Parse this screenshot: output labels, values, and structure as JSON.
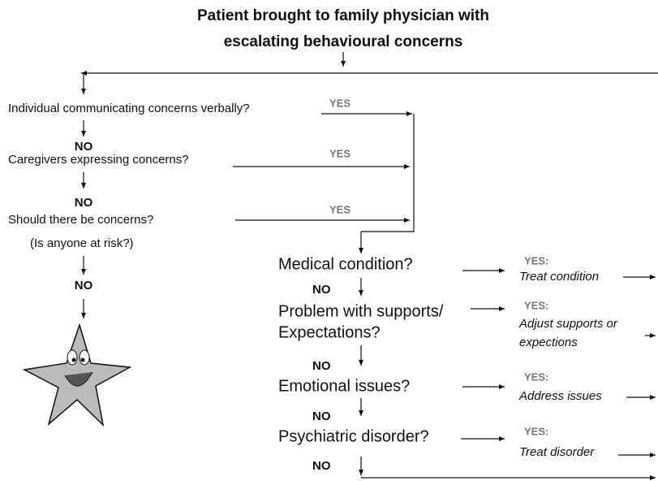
{
  "title": [
    "Patient brought to family physician with",
    "escalating behavioural concerns"
  ],
  "screening": {
    "questions": [
      "Individual communicating concerns verbally?",
      "Caregivers expressing concerns?",
      "Should there be concerns?"
    ],
    "risk_note": "(Is anyone at risk?)",
    "yes_labels": [
      "YES",
      "YES",
      "YES"
    ],
    "no_labels": [
      "NO",
      "NO",
      "NO"
    ]
  },
  "assessment": {
    "steps": [
      {
        "question": [
          "Medical condition?"
        ],
        "yes_label": "YES:",
        "action": [
          "Treat condition"
        ]
      },
      {
        "question": [
          "Problem with supports/",
          "Expectations?"
        ],
        "yes_label": "YES:",
        "action": [
          "Adjust supports or",
          "expections"
        ]
      },
      {
        "question": [
          "Emotional issues?"
        ],
        "yes_label": "YES:",
        "action": [
          "Address issues"
        ]
      },
      {
        "question": [
          "Psychiatric disorder?"
        ],
        "yes_label": "YES:",
        "action": [
          "Treat disorder"
        ]
      }
    ],
    "no_labels": [
      "NO",
      "NO",
      "NO",
      "NO"
    ]
  }
}
